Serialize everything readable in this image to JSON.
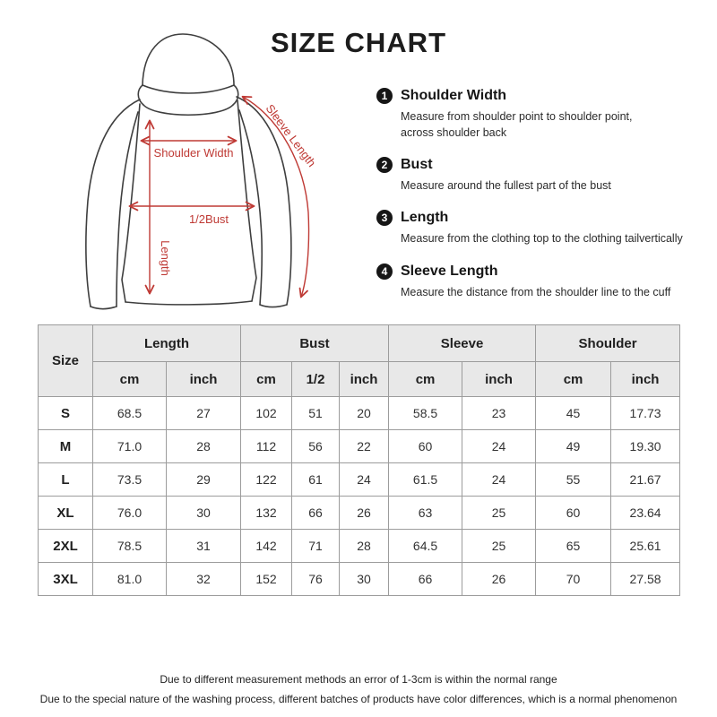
{
  "title": "SIZE CHART",
  "colors": {
    "accent_red": "#bf3a35",
    "outline_gray": "#3f3f3f",
    "table_header_bg": "#e8e8e8",
    "table_border": "#9c9c9c"
  },
  "diagram": {
    "shoulder_width_label": "Shoulder Width",
    "half_bust_label": "1/2Bust",
    "length_label": "Length",
    "sleeve_length_label": "Sleeve Length"
  },
  "instructions": [
    {
      "number": "1",
      "title": "Shoulder Width",
      "description": "Measure from shoulder point to shoulder point,\nacross shoulder back"
    },
    {
      "number": "2",
      "title": "Bust",
      "description": "Measure around the fullest part of the bust"
    },
    {
      "number": "3",
      "title": "Length",
      "description": "Measure from the clothing top to the clothing tailvertically"
    },
    {
      "number": "4",
      "title": "Sleeve Length",
      "description": "Measure the distance from the shoulder line to the cuff"
    }
  ],
  "table": {
    "corner_header": "Size",
    "groups": [
      {
        "label": "Length",
        "units": [
          "cm",
          "inch"
        ]
      },
      {
        "label": "Bust",
        "units": [
          "cm",
          "1/2",
          "inch"
        ]
      },
      {
        "label": "Sleeve",
        "units": [
          "cm",
          "inch"
        ]
      },
      {
        "label": "Shoulder",
        "units": [
          "cm",
          "inch"
        ]
      }
    ],
    "rows": [
      {
        "size": "S",
        "values": [
          "68.5",
          "27",
          "102",
          "51",
          "20",
          "58.5",
          "23",
          "45",
          "17.73"
        ]
      },
      {
        "size": "M",
        "values": [
          "71.0",
          "28",
          "112",
          "56",
          "22",
          "60",
          "24",
          "49",
          "19.30"
        ]
      },
      {
        "size": "L",
        "values": [
          "73.5",
          "29",
          "122",
          "61",
          "24",
          "61.5",
          "24",
          "55",
          "21.67"
        ]
      },
      {
        "size": "XL",
        "values": [
          "76.0",
          "30",
          "132",
          "66",
          "26",
          "63",
          "25",
          "60",
          "23.64"
        ]
      },
      {
        "size": "2XL",
        "values": [
          "78.5",
          "31",
          "142",
          "71",
          "28",
          "64.5",
          "25",
          "65",
          "25.61"
        ]
      },
      {
        "size": "3XL",
        "values": [
          "81.0",
          "32",
          "152",
          "76",
          "30",
          "66",
          "26",
          "70",
          "27.58"
        ]
      }
    ]
  },
  "footnotes": [
    "Due to different measurement methods an error of 1-3cm is within the normal range",
    "Due to the special nature of the washing process, different batches of products have color differences, which is a normal phenomenon"
  ]
}
